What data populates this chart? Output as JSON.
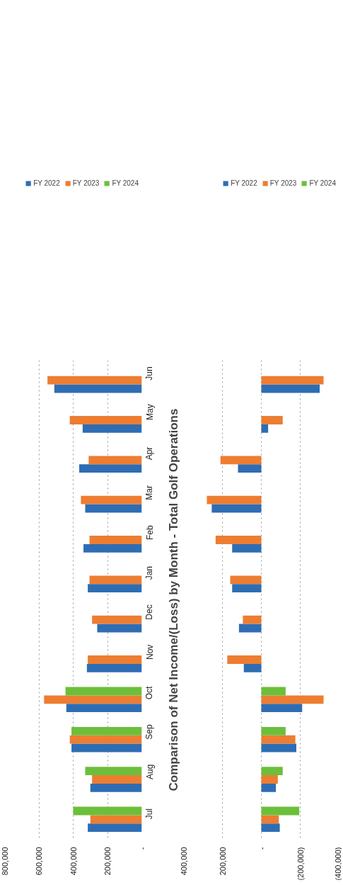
{
  "chart_data": [
    {
      "type": "bar",
      "orientation": "horizontal",
      "categories": [
        "Jun",
        "May",
        "Apr",
        "Mar",
        "Feb",
        "Jan",
        "Dec",
        "Nov",
        "Oct",
        "Sep",
        "Aug",
        "Jul"
      ],
      "series": [
        {
          "name": "FY 2022",
          "color": "#2e6db4",
          "values": [
            510000,
            345000,
            365000,
            330000,
            340000,
            315000,
            260000,
            320000,
            440000,
            410000,
            300000,
            315000
          ]
        },
        {
          "name": "FY 2023",
          "color": "#ed7d31",
          "values": [
            550000,
            420000,
            310000,
            355000,
            305000,
            305000,
            290000,
            315000,
            570000,
            420000,
            290000,
            300000
          ]
        },
        {
          "name": "FY 2024",
          "color": "#6cbf3a",
          "values": [
            null,
            null,
            null,
            null,
            null,
            null,
            null,
            null,
            445000,
            410000,
            330000,
            400000
          ]
        }
      ],
      "xlim": [
        800000,
        0
      ],
      "xticks": [
        {
          "value": 800000,
          "label": "800,000"
        },
        {
          "value": 600000,
          "label": "600,000"
        },
        {
          "value": 400000,
          "label": "400,000"
        },
        {
          "value": 200000,
          "label": "200,000"
        },
        {
          "value": 0,
          "label": "-"
        }
      ],
      "grid": "x",
      "legend": "top"
    },
    {
      "type": "bar",
      "orientation": "horizontal",
      "title": "Comparison of Net Income/(Loss) by Month - Total Golf Operations",
      "categories": [
        null,
        null,
        null,
        null,
        null,
        null,
        null,
        null,
        null,
        null,
        null,
        null
      ],
      "series": [
        {
          "name": "FY 2022",
          "color": "#2e6db4",
          "values": [
            -300000,
            -35000,
            120000,
            255000,
            150000,
            150000,
            115000,
            90000,
            -210000,
            -180000,
            -75000,
            -95000
          ]
        },
        {
          "name": "FY 2023",
          "color": "#ed7d31",
          "values": [
            -320000,
            -110000,
            210000,
            280000,
            235000,
            160000,
            95000,
            175000,
            -320000,
            -175000,
            -85000,
            -90000
          ]
        },
        {
          "name": "FY 2024",
          "color": "#6cbf3a",
          "values": [
            null,
            null,
            null,
            null,
            null,
            null,
            null,
            null,
            -125000,
            -125000,
            -110000,
            -195000
          ]
        }
      ],
      "xlim": [
        400000,
        -400000
      ],
      "xticks": [
        {
          "value": 400000,
          "label": "400,000"
        },
        {
          "value": 200000,
          "label": "200,000"
        },
        {
          "value": 0,
          "label": "-"
        },
        {
          "value": -200000,
          "label": "(200,000)"
        },
        {
          "value": -400000,
          "label": "(400,000)"
        }
      ],
      "grid": "x",
      "legend": "top"
    }
  ]
}
